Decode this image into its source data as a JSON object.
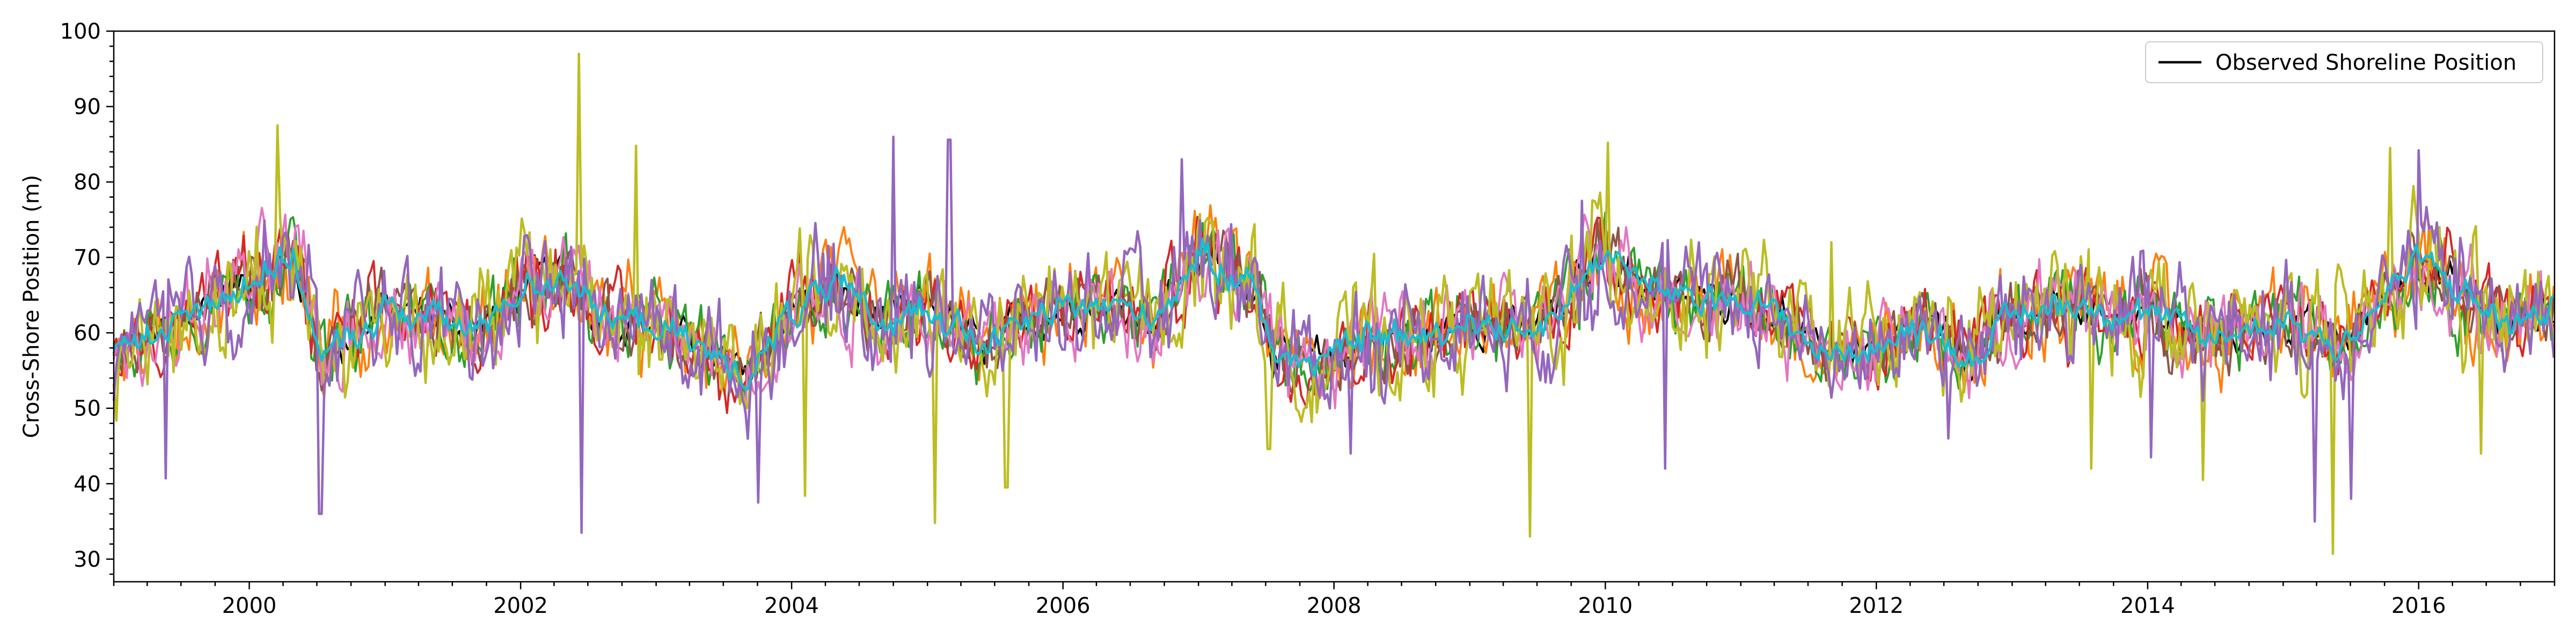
{
  "chart_data": {
    "type": "line",
    "title": "",
    "xlabel": "",
    "ylabel": "Cross-Shore Position (m)",
    "xlim": [
      "1999-01-01",
      "2017-01-01"
    ],
    "ylim": [
      27,
      100
    ],
    "x_ticks": [
      "2000",
      "2002",
      "2004",
      "2006",
      "2008",
      "2010",
      "2012",
      "2014",
      "2016"
    ],
    "y_ticks": [
      30,
      40,
      50,
      60,
      70,
      80,
      90,
      100
    ],
    "grid": false,
    "legend": {
      "location": "top-right",
      "entries": [
        {
          "label": "Observed Shoreline Position",
          "color": "#000000"
        }
      ]
    },
    "series_colors": [
      "#000000",
      "#ff7f0e",
      "#2ca02c",
      "#d62728",
      "#8c564b",
      "#e377c2",
      "#bcbd22",
      "#9467bd",
      "#17becf"
    ],
    "envelope_x": [
      "1999-01-01",
      "1999-06-01",
      "2000-01-01",
      "2000-05-01",
      "2000-07-15",
      "2001-01-01",
      "2001-06-01",
      "2001-09-01",
      "2002-01-01",
      "2002-05-15",
      "2002-08-01",
      "2003-01-01",
      "2003-06-01",
      "2003-09-01",
      "2004-01-01",
      "2004-05-01",
      "2004-09-01",
      "2005-01-01",
      "2005-06-01",
      "2005-09-01",
      "2006-01-01",
      "2006-05-01",
      "2006-09-01",
      "2007-01-01",
      "2007-06-01",
      "2007-08-01",
      "2008-01-01",
      "2008-05-01",
      "2008-09-01",
      "2009-01-01",
      "2009-06-01",
      "2009-09-01",
      "2010-01-01",
      "2010-05-01",
      "2010-09-01",
      "2011-01-01",
      "2011-05-01",
      "2011-08-01",
      "2012-01-01",
      "2012-06-01",
      "2012-09-01",
      "2013-01-01",
      "2013-06-01",
      "2013-09-01",
      "2014-01-01",
      "2014-06-01",
      "2014-09-01",
      "2015-01-01",
      "2015-06-01",
      "2015-09-01",
      "2016-01-01",
      "2016-06-01",
      "2016-09-01",
      "2017-01-01"
    ],
    "envelope_mean": [
      57,
      61,
      67,
      70,
      56,
      63,
      62,
      60,
      66,
      68,
      62,
      61,
      57,
      54,
      63,
      66,
      61,
      64,
      58,
      61,
      63,
      64,
      62,
      70,
      67,
      56,
      57,
      60,
      59,
      62,
      60,
      63,
      71,
      66,
      64,
      65,
      62,
      57,
      58,
      61,
      56,
      62,
      64,
      63,
      63,
      59,
      60,
      62,
      58,
      63,
      70,
      64,
      61,
      63
    ],
    "envelope_spread": [
      6,
      7,
      8,
      8,
      8,
      7,
      7,
      7,
      8,
      8,
      7,
      7,
      7,
      6,
      8,
      8,
      7,
      8,
      7,
      7,
      7,
      7,
      7,
      8,
      8,
      7,
      7,
      8,
      7,
      7,
      7,
      8,
      8,
      7,
      7,
      7,
      7,
      6,
      7,
      7,
      7,
      8,
      8,
      7,
      8,
      7,
      7,
      8,
      7,
      7,
      8,
      8,
      7,
      7
    ],
    "spikes": [
      [
        "1999-05-20",
        40.7
      ],
      [
        "2000-03-15",
        87.5
      ],
      [
        "2000-07-10",
        36
      ],
      [
        "2002-06-05",
        97
      ],
      [
        "2002-06-12",
        33.5
      ],
      [
        "2002-11-10",
        84.8
      ],
      [
        "2003-10-01",
        37.5
      ],
      [
        "2004-02-05",
        38.4
      ],
      [
        "2004-10-01",
        86
      ],
      [
        "2005-01-20",
        34.8
      ],
      [
        "2005-03-01",
        85.6
      ],
      [
        "2005-08-01",
        39.5
      ],
      [
        "2006-11-15",
        83
      ],
      [
        "2007-07-10",
        44.6
      ],
      [
        "2008-02-15",
        44
      ],
      [
        "2009-06-10",
        33
      ],
      [
        "2009-11-01",
        77.5
      ],
      [
        "2010-01-10",
        85.2
      ],
      [
        "2010-06-10",
        42
      ],
      [
        "2011-09-01",
        72
      ],
      [
        "2012-07-15",
        46
      ],
      [
        "2013-08-01",
        42
      ],
      [
        "2014-01-10",
        43.5
      ],
      [
        "2014-06-01",
        40.5
      ],
      [
        "2015-03-25",
        35
      ],
      [
        "2015-05-15",
        30.7
      ],
      [
        "2015-07-01",
        38
      ],
      [
        "2015-10-15",
        84.5
      ],
      [
        "2016-01-01",
        84.2
      ],
      [
        "2016-06-15",
        44
      ]
    ]
  }
}
